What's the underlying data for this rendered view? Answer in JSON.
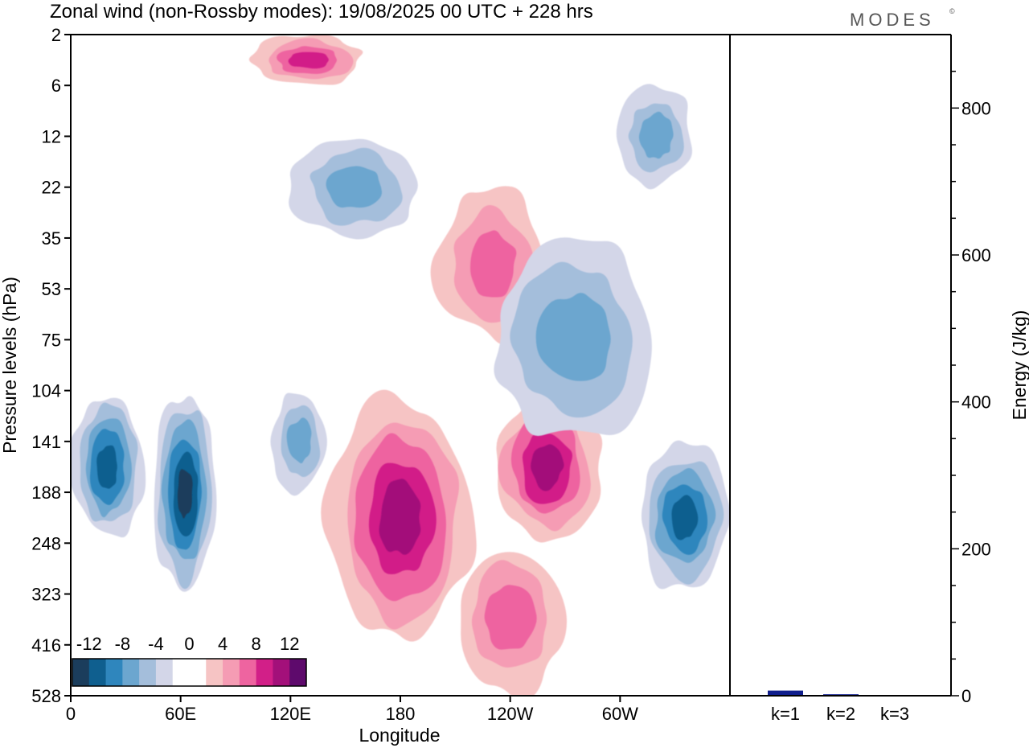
{
  "chart_data": [
    {
      "type": "heatmap",
      "title": "Zonal wind (non-Rossby modes):  19/08/2025  00 UTC  + 228 hrs",
      "xlabel": "Longitude",
      "ylabel": "Pressure levels (hPa)",
      "x_ticks": [
        "0",
        "60E",
        "120E",
        "180",
        "120W",
        "60W"
      ],
      "y_ticks": [
        "2",
        "6",
        "12",
        "22",
        "35",
        "53",
        "75",
        "104",
        "141",
        "188",
        "248",
        "323",
        "416",
        "528"
      ],
      "colorbar": {
        "tick_labels": [
          "-12",
          "-8",
          "-4",
          "0",
          "4",
          "8",
          "12"
        ],
        "colors": [
          "#1b3d5c",
          "#0f5f8f",
          "#2f86bd",
          "#6ca6cf",
          "#a4bedb",
          "#d3d6e8",
          "#ffffff",
          "#ffffff",
          "#f6c4c4",
          "#f59cb4",
          "#ee64a0",
          "#d21f88",
          "#a3107a",
          "#5e0a6c"
        ]
      },
      "features": [
        {
          "sign": "negative",
          "peak": -13,
          "lon_range": [
            45,
            80
          ],
          "level_range": [
            104,
            323
          ],
          "label": "Negative core near 60E"
        },
        {
          "sign": "negative",
          "peak": -9,
          "lon_range": [
            0,
            40
          ],
          "level_range": [
            104,
            248
          ],
          "label": "Negative region near 0-30E"
        },
        {
          "sign": "negative",
          "peak": -9,
          "lon_range": [
            310,
            360
          ],
          "level_range": [
            141,
            323
          ],
          "label": "Negative region near 30W-0"
        },
        {
          "sign": "negative",
          "peak": -6,
          "lon_range": [
            110,
            140
          ],
          "level_range": [
            104,
            188
          ],
          "label": "Negative region near 120E"
        },
        {
          "sign": "positive",
          "peak": 9,
          "lon_range": [
            140,
            220
          ],
          "level_range": [
            104,
            416
          ],
          "label": "Positive region near 180"
        },
        {
          "sign": "positive",
          "peak": 9,
          "lon_range": [
            230,
            290
          ],
          "level_range": [
            104,
            248
          ],
          "label": "Positive region near 100W"
        },
        {
          "sign": "positive",
          "peak": 5,
          "lon_range": [
            210,
            270
          ],
          "level_range": [
            248,
            528
          ],
          "label": "Positive region lower levels near 120W"
        },
        {
          "sign": "positive",
          "peak": 6,
          "lon_range": [
            200,
            260
          ],
          "level_range": [
            22,
            75
          ],
          "label": "Positive region stratosphere near 150W"
        },
        {
          "sign": "negative",
          "peak": -5,
          "lon_range": [
            230,
            320
          ],
          "level_range": [
            35,
            141
          ],
          "label": "Negative band near 80W"
        },
        {
          "sign": "negative",
          "peak": -5,
          "lon_range": [
            120,
            190
          ],
          "level_range": [
            12,
            35
          ],
          "label": "Negative region near 150E upper levels"
        },
        {
          "sign": "positive",
          "peak": 8,
          "lon_range": [
            100,
            160
          ],
          "level_range": [
            2,
            6
          ],
          "label": "Positive band near top 120E-160E"
        },
        {
          "sign": "negative",
          "peak": -5,
          "lon_range": [
            300,
            340
          ],
          "level_range": [
            6,
            22
          ],
          "label": "Negative region near 40W upper levels"
        }
      ]
    },
    {
      "type": "bar",
      "ylabel": "Energy (J/kg)",
      "categories": [
        "k=1",
        "k=2",
        "k=3"
      ],
      "values": [
        7,
        2,
        1
      ],
      "ylim": [
        0,
        900
      ],
      "y_ticks": [
        "0",
        "200",
        "400",
        "600",
        "800"
      ],
      "bar_color": "#101e8c"
    }
  ],
  "header": {
    "title": "Zonal wind (non-Rossby modes):  19/08/2025  00 UTC  + 228 hrs",
    "brand": "MODES",
    "brand_mark": "©"
  }
}
